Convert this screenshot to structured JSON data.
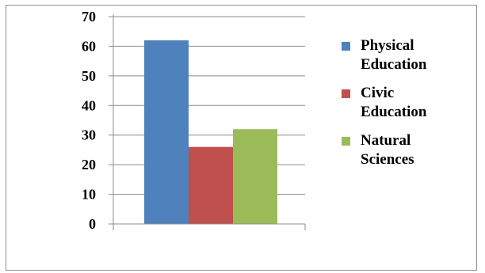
{
  "chart_data": {
    "type": "bar",
    "categories": [
      ""
    ],
    "series": [
      {
        "name": "Physical Education",
        "values": [
          62
        ],
        "color": "#4f81bd"
      },
      {
        "name": "Civic Education",
        "values": [
          26
        ],
        "color": "#c0504d"
      },
      {
        "name": "Natural Sciences",
        "values": [
          32
        ],
        "color": "#9bbb59"
      }
    ],
    "title": "",
    "xlabel": "",
    "ylabel": "",
    "ylim": [
      0,
      70
    ],
    "yticks": [
      "0",
      "10",
      "20",
      "30",
      "40",
      "50",
      "60",
      "70"
    ],
    "grid": true,
    "legend_position": "right"
  },
  "legend": {
    "items": [
      {
        "line1": "Physical",
        "line2": "Education",
        "color": "#4f81bd"
      },
      {
        "line1": "Civic",
        "line2": "Education",
        "color": "#c0504d"
      },
      {
        "line1": "Natural",
        "line2": "Sciences",
        "color": "#9bbb59"
      }
    ]
  }
}
